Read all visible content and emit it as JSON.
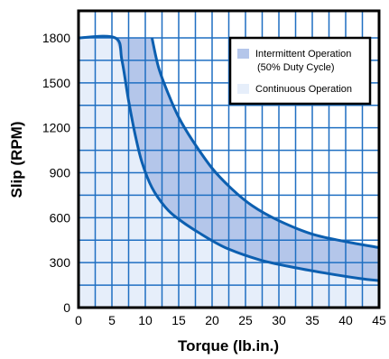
{
  "chart_data": {
    "type": "area",
    "xlabel": "Torque (lb.in.)",
    "ylabel": "Slip (RPM)",
    "xlim": [
      0,
      45
    ],
    "ylim": [
      0,
      1800
    ],
    "x_ticks": [
      "0",
      "5",
      "10",
      "15",
      "20",
      "25",
      "30",
      "35",
      "40",
      "45"
    ],
    "y_ticks": [
      "0",
      "300",
      "600",
      "900",
      "1200",
      "1500",
      "1800"
    ],
    "grid": true,
    "legend_position": "top-right",
    "colors": {
      "grid": "#1f6fc2",
      "curve": "#0c5fb0",
      "intermittent_fill": "#b4c6ea",
      "continuous_fill": "#e6eefa",
      "frame": "#000000"
    },
    "series": [
      {
        "name": "Intermittent Operation",
        "name_line2": "(50% Duty Cycle)",
        "x": [
          11,
          12,
          13.5,
          15,
          17,
          20,
          23,
          26,
          30,
          35,
          40,
          45
        ],
        "y": [
          1800,
          1600,
          1420,
          1270,
          1120,
          930,
          790,
          680,
          580,
          490,
          440,
          400
        ]
      },
      {
        "name": "Continuous Operation",
        "x": [
          0,
          5.5,
          6.5,
          7.5,
          8.5,
          9.5,
          11,
          13,
          15,
          18,
          22,
          27,
          32,
          37,
          42,
          45
        ],
        "y": [
          1800,
          1800,
          1650,
          1380,
          1150,
          970,
          800,
          670,
          590,
          500,
          400,
          320,
          270,
          230,
          195,
          180
        ]
      }
    ]
  }
}
